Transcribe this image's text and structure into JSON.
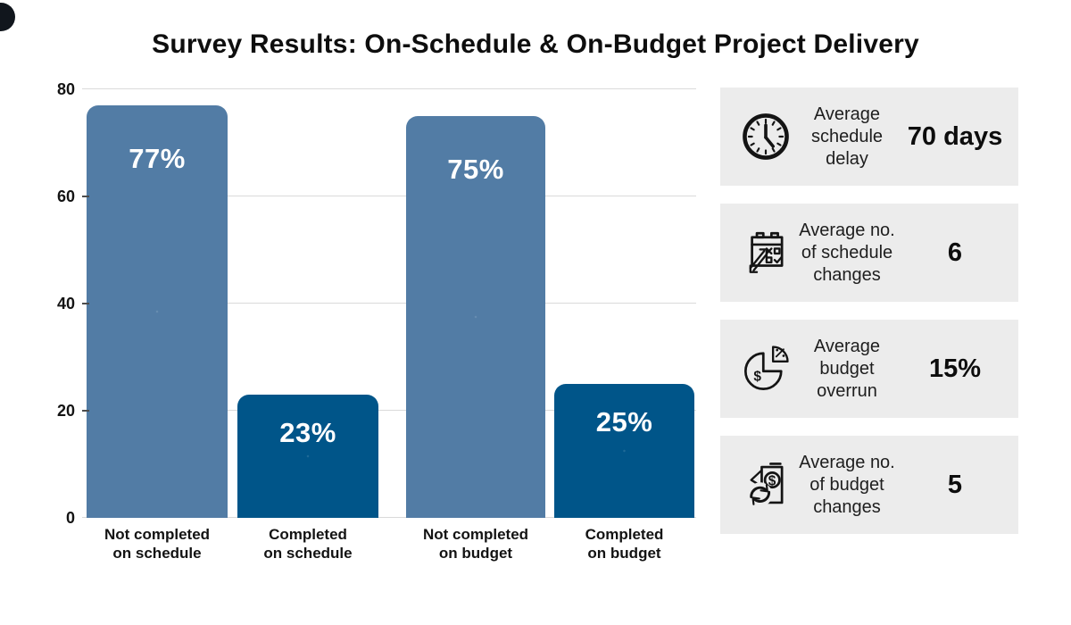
{
  "title": "Survey Results: On-Schedule & On-Budget Project Delivery",
  "chart_data": {
    "type": "bar",
    "title": "Survey Results: On-Schedule & On-Budget Project Delivery",
    "categories": [
      "Not completed on schedule",
      "Completed on schedule",
      "Not completed on budget",
      "Completed on budget"
    ],
    "values": [
      77,
      23,
      75,
      25
    ],
    "value_labels": [
      "77%",
      "23%",
      "75%",
      "25%"
    ],
    "series_colors": [
      "#527CA5",
      "#005589",
      "#527CA5",
      "#005589"
    ],
    "ylim": [
      0,
      80
    ],
    "yticks": [
      0,
      20,
      40,
      60,
      80
    ],
    "grid": true,
    "legend": false,
    "xlabel": "",
    "ylabel": ""
  },
  "stats": [
    {
      "icon": "clock-icon",
      "label": "Average schedule delay",
      "value": "70 days"
    },
    {
      "icon": "schedule-changes-icon",
      "label": "Average no. of schedule changes",
      "value": "6"
    },
    {
      "icon": "budget-overrun-icon",
      "label": "Average budget overrun",
      "value": "15%"
    },
    {
      "icon": "budget-changes-icon",
      "label": "Average no. of budget changes",
      "value": "5"
    }
  ],
  "colors": {
    "bar_light": "#527CA5",
    "bar_dark": "#005589",
    "card_bg": "#ECECEC",
    "grid_line": "#DADADA",
    "text": "#111111"
  }
}
